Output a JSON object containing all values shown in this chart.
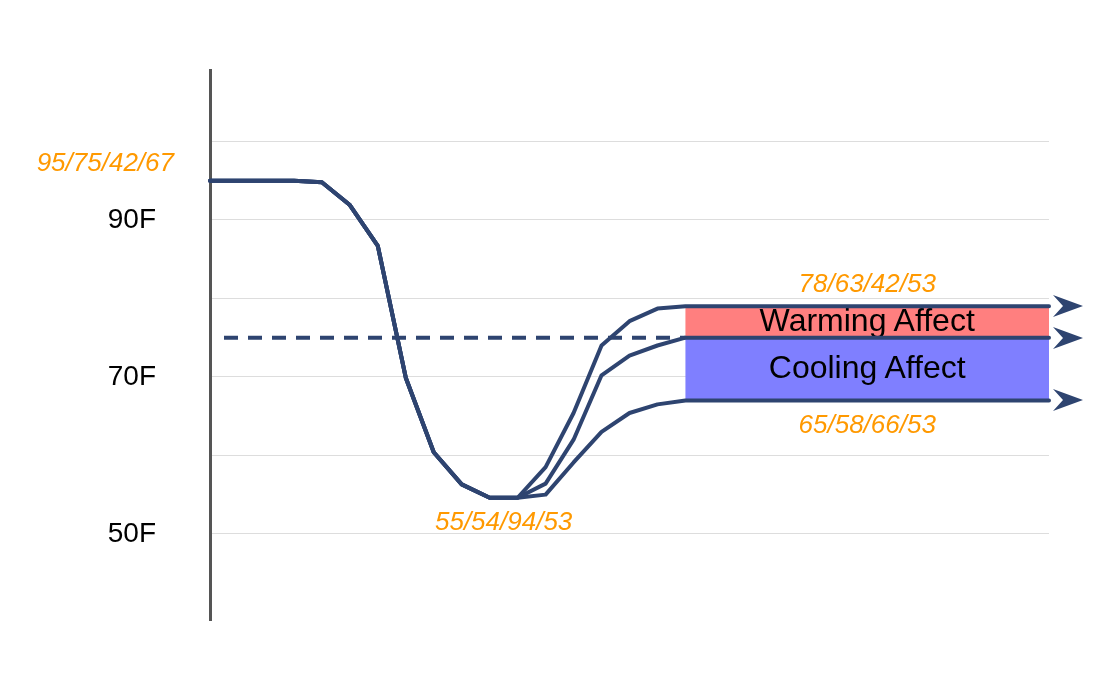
{
  "chart_data": {
    "type": "line",
    "categories": [
      null,
      null,
      null,
      null,
      null,
      null,
      null,
      null,
      null,
      null,
      null,
      null,
      null,
      null,
      null,
      null,
      null,
      null,
      null,
      null,
      null,
      null,
      null,
      null,
      null,
      null,
      null,
      null,
      null,
      null,
      null
    ],
    "ylim": [
      39,
      109
    ],
    "yticks": [
      {
        "value": 100,
        "label": null
      },
      {
        "value": 90,
        "label": "90F"
      },
      {
        "value": 80,
        "label": null
      },
      {
        "value": 70,
        "label": "70F"
      },
      {
        "value": 60,
        "label": null
      },
      {
        "value": 50,
        "label": "50F"
      }
    ],
    "tick_labels": "y",
    "grid": "y",
    "marker": "none",
    "line_style": "solid",
    "series": [
      {
        "color": "#2e4470",
        "values": [
          95,
          95,
          95,
          95,
          94.8,
          91.9,
          86.7,
          69.9,
          60.4,
          56.3,
          54.6,
          54.6,
          58.5,
          65.4,
          74,
          77.1,
          78.7,
          79,
          79,
          79,
          79,
          79,
          79,
          79,
          79,
          79,
          79,
          79,
          79,
          79,
          79
        ]
      },
      {
        "color": "#2e4470",
        "values": [
          95,
          95,
          95,
          95,
          94.8,
          91.9,
          86.7,
          69.9,
          60.4,
          56.3,
          54.6,
          54.6,
          56.4,
          62,
          70.2,
          72.7,
          74,
          75,
          75,
          75,
          75,
          75,
          75,
          75,
          75,
          75,
          75,
          75,
          75,
          75,
          75
        ]
      },
      {
        "color": "#2e4470",
        "values": [
          95,
          95,
          95,
          95,
          94.8,
          91.9,
          86.7,
          69.9,
          60.4,
          56.3,
          54.6,
          54.6,
          55,
          59.1,
          63,
          65.4,
          66.5,
          67,
          67,
          67,
          67,
          67,
          67,
          67,
          67,
          67,
          67,
          67,
          67,
          67,
          67
        ]
      }
    ],
    "ref_lines": [
      {
        "axis": "y",
        "value": 75,
        "color": "#2e4470",
        "line_style": "dashed"
      }
    ],
    "bands": [
      {
        "axis": "y",
        "from": 75,
        "to": 79,
        "label": "Warming Affect",
        "color": "#ff7f7f"
      },
      {
        "axis": "y",
        "from": 67,
        "to": 75,
        "label": "Cooling Affect",
        "color": "#7f7fff"
      }
    ],
    "annotations": [
      "95/75/42/67",
      {
        "text": "55/54/94/53",
        "y": 54.6
      },
      {
        "text": "78/63/42/53",
        "y": 79
      },
      {
        "text": "65/58/66/53",
        "y": 67
      }
    ]
  }
}
